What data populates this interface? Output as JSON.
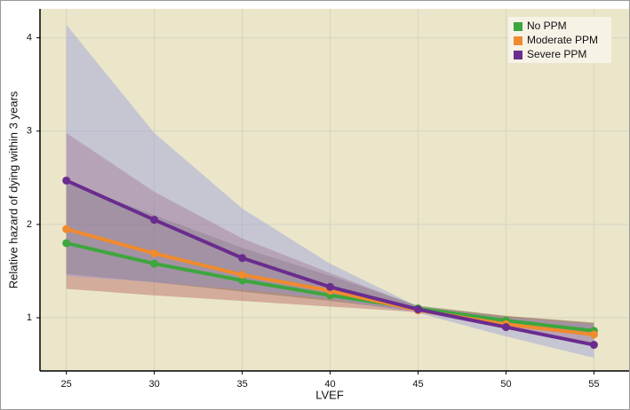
{
  "chart_data": {
    "type": "line",
    "x_label": "LVEF",
    "y_label": "Relative hazard of dying within 3 years",
    "x": [
      25,
      30,
      35,
      40,
      45,
      50,
      55
    ],
    "xlim": [
      23.5,
      57
    ],
    "xticks": [
      25,
      30,
      35,
      40,
      45,
      50,
      55
    ],
    "ylim": [
      0.43,
      4.31
    ],
    "yticks": [
      1,
      2,
      3,
      4
    ],
    "grid": true,
    "legend": "top-right",
    "background": "#ebe6c9",
    "series": [
      {
        "name": "No PPM",
        "color": "#3da63d",
        "band_color": "#5a6f3a",
        "values": [
          1.8,
          1.58,
          1.4,
          1.24,
          1.1,
          0.97,
          0.86
        ],
        "lower": [
          1.47,
          1.38,
          1.28,
          1.18,
          1.07,
          0.93,
          0.8
        ],
        "upper": [
          2.45,
          2.1,
          1.75,
          1.45,
          1.13,
          1.02,
          0.95
        ]
      },
      {
        "name": "Moderate PPM",
        "color": "#f08a2e",
        "band_color": "#b0555a",
        "values": [
          1.95,
          1.69,
          1.46,
          1.29,
          1.08,
          0.93,
          0.82
        ],
        "lower": [
          1.31,
          1.24,
          1.18,
          1.12,
          1.06,
          0.88,
          0.72
        ],
        "upper": [
          2.98,
          2.35,
          1.85,
          1.48,
          1.12,
          1.02,
          0.94
        ]
      },
      {
        "name": "Severe PPM",
        "color": "#6a2c8e",
        "band_color": "#8f95e0",
        "values": [
          2.47,
          2.05,
          1.64,
          1.33,
          1.09,
          0.9,
          0.71
        ],
        "lower": [
          1.45,
          1.38,
          1.3,
          1.2,
          1.05,
          0.8,
          0.57
        ],
        "upper": [
          4.14,
          2.98,
          2.17,
          1.58,
          1.12,
          1.0,
          0.93
        ]
      }
    ]
  }
}
